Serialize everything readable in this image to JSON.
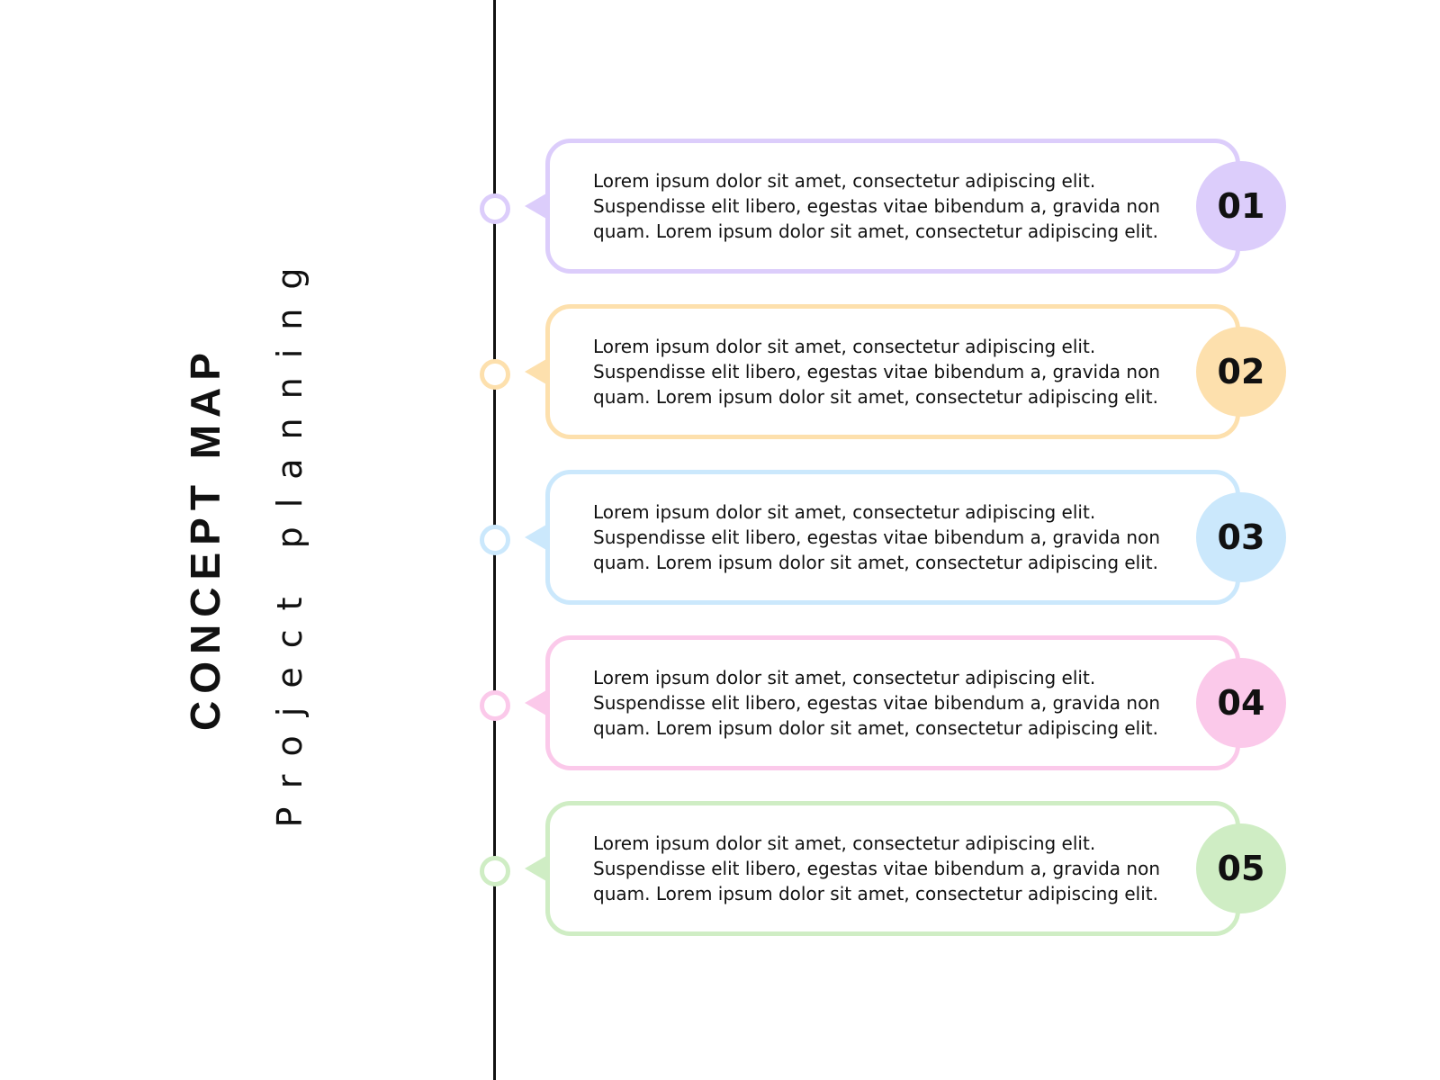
{
  "title": "CONCEPT MAP",
  "subtitle": "Project planning",
  "colors": {
    "line": "#111111",
    "purple": "#dccdfb",
    "orange": "#fde0ad",
    "blue": "#cbe8fc",
    "pink": "#fbc9ea",
    "green": "#cfedc4"
  },
  "items": [
    {
      "number": "01",
      "color": "#dccdfb",
      "text": "Lorem ipsum dolor sit amet, consectetur adipiscing elit. Suspendisse elit libero, egestas vitae bibendum a, gravida non quam. Lorem ipsum dolor sit amet, consectetur adipiscing elit."
    },
    {
      "number": "02",
      "color": "#fde0ad",
      "text": "Lorem ipsum dolor sit amet, consectetur adipiscing elit. Suspendisse elit libero, egestas vitae bibendum a, gravida non quam. Lorem ipsum dolor sit amet, consectetur adipiscing elit."
    },
    {
      "number": "03",
      "color": "#cbe8fc",
      "text": "Lorem ipsum dolor sit amet, consectetur adipiscing elit. Suspendisse elit libero, egestas vitae bibendum a, gravida non quam. Lorem ipsum dolor sit amet, consectetur adipiscing elit."
    },
    {
      "number": "04",
      "color": "#fbc9ea",
      "text": "Lorem ipsum dolor sit amet, consectetur adipiscing elit. Suspendisse elit libero, egestas vitae bibendum a, gravida non quam. Lorem ipsum dolor sit amet, consectetur adipiscing elit."
    },
    {
      "number": "05",
      "color": "#cfedc4",
      "text": "Lorem ipsum dolor sit amet, consectetur adipiscing elit. Suspendisse elit libero, egestas vitae bibendum a, gravida non quam. Lorem ipsum dolor sit amet, consectetur adipiscing elit."
    }
  ]
}
